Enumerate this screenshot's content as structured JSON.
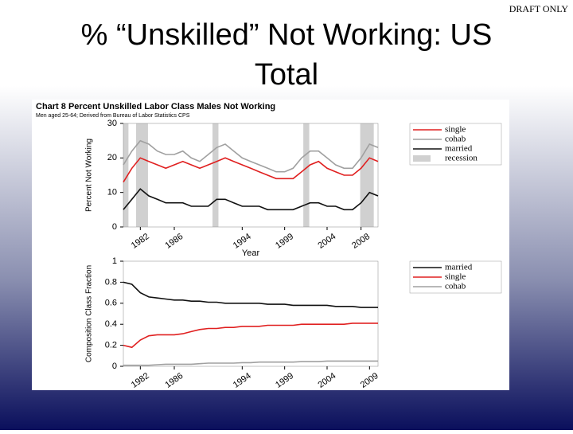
{
  "slide": {
    "title_line1": "% “Unskilled” Not Working: US",
    "title_line2": "Total",
    "draft_label": "DRAFT ONLY"
  },
  "chart_data": [
    {
      "type": "line",
      "title": "Chart 8 Percent Unskilled Labor Class Males Not Working",
      "subtitle": "Men aged 25-64; Derived from Bureau of Labor Statistics CPS",
      "y_label": "Percent Not Working",
      "x_label": "Year",
      "x": [
        1980,
        1981,
        1982,
        1983,
        1984,
        1985,
        1986,
        1987,
        1988,
        1989,
        1990,
        1991,
        1992,
        1993,
        1994,
        1995,
        1996,
        1997,
        1998,
        1999,
        2000,
        2001,
        2002,
        2003,
        2004,
        2005,
        2006,
        2007,
        2008,
        2009,
        2010
      ],
      "xlim": [
        1980,
        2010
      ],
      "xticks": [
        1982,
        1986,
        1994,
        1999,
        2004,
        2008
      ],
      "ylim": [
        0,
        30
      ],
      "yticks": [
        0,
        10,
        20,
        30
      ],
      "recession_label": "recession",
      "recession_color": "#d0d0d0",
      "recessions": [
        [
          1980,
          1980.6
        ],
        [
          1981.5,
          1982.9
        ],
        [
          1990.5,
          1991.2
        ],
        [
          2001.2,
          2001.9
        ],
        [
          2007.9,
          2009.5
        ]
      ],
      "series": [
        {
          "name": "single",
          "color": "#e02020",
          "values": [
            13,
            17,
            20,
            19,
            18,
            17,
            18,
            19,
            18,
            17,
            18,
            19,
            20,
            19,
            18,
            17,
            16,
            15,
            14,
            14,
            14,
            16,
            18,
            19,
            17,
            16,
            15,
            15,
            17,
            20,
            19
          ]
        },
        {
          "name": "cohab",
          "color": "#a0a0a0",
          "values": [
            18,
            22,
            25,
            24,
            22,
            21,
            21,
            22,
            20,
            19,
            21,
            23,
            24,
            22,
            20,
            19,
            18,
            17,
            16,
            16,
            17,
            20,
            22,
            22,
            20,
            18,
            17,
            17,
            20,
            24,
            23
          ]
        },
        {
          "name": "married",
          "color": "#111111",
          "values": [
            5,
            8,
            11,
            9,
            8,
            7,
            7,
            7,
            6,
            6,
            6,
            8,
            8,
            7,
            6,
            6,
            6,
            5,
            5,
            5,
            5,
            6,
            7,
            7,
            6,
            6,
            5,
            5,
            7,
            10,
            9
          ]
        }
      ]
    },
    {
      "type": "line",
      "y_label": "Composition Class Fraction",
      "x": [
        1980,
        1981,
        1982,
        1983,
        1984,
        1985,
        1986,
        1987,
        1988,
        1989,
        1990,
        1991,
        1992,
        1993,
        1994,
        1995,
        1996,
        1997,
        1998,
        1999,
        2000,
        2001,
        2002,
        2003,
        2004,
        2005,
        2006,
        2007,
        2008,
        2009,
        2010
      ],
      "xlim": [
        1980,
        2010
      ],
      "xticks": [
        1982,
        1986,
        1994,
        1999,
        2004,
        2009
      ],
      "ylim": [
        0,
        1
      ],
      "yticks": [
        0,
        0.2,
        0.4,
        0.6,
        0.8,
        1
      ],
      "series": [
        {
          "name": "married",
          "color": "#111111",
          "values": [
            0.8,
            0.78,
            0.7,
            0.66,
            0.65,
            0.64,
            0.63,
            0.63,
            0.62,
            0.62,
            0.61,
            0.61,
            0.6,
            0.6,
            0.6,
            0.6,
            0.6,
            0.59,
            0.59,
            0.59,
            0.58,
            0.58,
            0.58,
            0.58,
            0.58,
            0.57,
            0.57,
            0.57,
            0.56,
            0.56,
            0.56
          ]
        },
        {
          "name": "single",
          "color": "#e02020",
          "values": [
            0.2,
            0.18,
            0.25,
            0.29,
            0.3,
            0.3,
            0.3,
            0.31,
            0.33,
            0.35,
            0.36,
            0.36,
            0.37,
            0.37,
            0.38,
            0.38,
            0.38,
            0.39,
            0.39,
            0.39,
            0.39,
            0.4,
            0.4,
            0.4,
            0.4,
            0.4,
            0.4,
            0.41,
            0.41,
            0.41,
            0.41
          ]
        },
        {
          "name": "cohab",
          "color": "#a0a0a0",
          "values": [
            0.01,
            0.01,
            0.01,
            0.01,
            0.015,
            0.02,
            0.02,
            0.02,
            0.02,
            0.025,
            0.03,
            0.03,
            0.03,
            0.03,
            0.035,
            0.035,
            0.04,
            0.04,
            0.04,
            0.04,
            0.04,
            0.045,
            0.045,
            0.045,
            0.05,
            0.05,
            0.05,
            0.05,
            0.05,
            0.05,
            0.05
          ]
        }
      ]
    }
  ]
}
